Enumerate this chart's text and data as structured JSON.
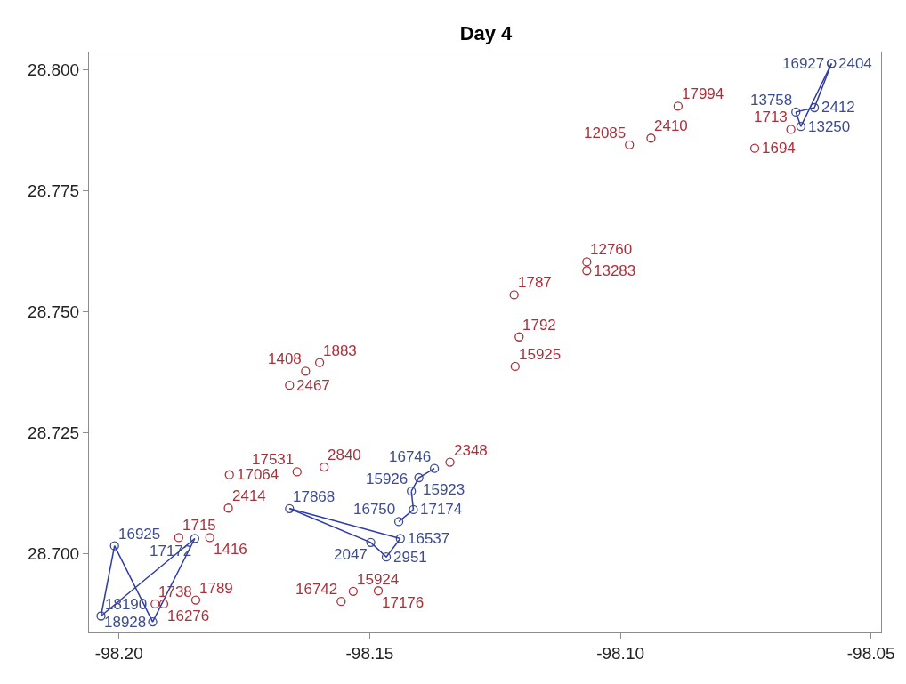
{
  "chart_data": {
    "type": "scatter",
    "title": "Day 4",
    "xlim": [
      -98.206,
      -98.048
    ],
    "ylim": [
      28.6837,
      28.8036
    ],
    "xticks": [
      {
        "value": -98.2,
        "label": "-98.20"
      },
      {
        "value": -98.15,
        "label": "-98.15"
      },
      {
        "value": -98.1,
        "label": "-98.10"
      },
      {
        "value": -98.05,
        "label": "-98.05"
      }
    ],
    "yticks": [
      {
        "value": 28.7,
        "label": "28.700"
      },
      {
        "value": 28.725,
        "label": "28.725"
      },
      {
        "value": 28.75,
        "label": "28.750"
      },
      {
        "value": 28.775,
        "label": "28.775"
      },
      {
        "value": 28.8,
        "label": "28.800"
      }
    ],
    "marker": "circle",
    "series": [
      {
        "color": "#a8323c",
        "x": [
          -98.0885,
          -98.0939,
          -98.0982,
          -98.066,
          -98.0732,
          -98.1067,
          -98.1067,
          -98.1212,
          -98.1202,
          -98.121,
          -98.16,
          -98.1628,
          -98.166,
          -98.178,
          -98.1645,
          -98.1591,
          -98.134,
          -98.1782,
          -98.1881,
          -98.1819,
          -98.1847,
          -98.1911,
          -98.1928,
          -98.1533,
          -98.1557,
          -98.1483
        ],
        "values": [
          28.7925,
          28.7859,
          28.7845,
          28.7877,
          28.7838,
          28.7603,
          28.7585,
          28.7535,
          28.7448,
          28.7387,
          28.7395,
          28.7377,
          28.7348,
          28.7163,
          28.7169,
          28.7179,
          28.7189,
          28.7094,
          28.7033,
          28.7033,
          28.6904,
          28.6896,
          28.6896,
          28.6922,
          28.6901,
          28.6923
        ]
      },
      {
        "color": "#3d4c8f",
        "x": [
          -98.0579,
          -98.0579,
          -98.0613,
          -98.065,
          -98.064,
          -98.1371,
          -98.1402,
          -98.1417,
          -98.1413,
          -98.1442,
          -98.1439,
          -98.1467,
          -98.1498,
          -98.166,
          -98.2009,
          -98.1849,
          -98.2036,
          -98.1933
        ],
        "values": [
          28.8013,
          28.8013,
          28.7922,
          28.7913,
          28.7883,
          28.7176,
          28.7157,
          28.7129,
          28.7091,
          28.7066,
          28.7031,
          28.6993,
          28.7023,
          28.7093,
          28.7016,
          28.7031,
          28.6871,
          28.6859
        ]
      },
      {
        "type": "line",
        "color": "#2e3ca8",
        "marker": "none",
        "line_style": "solid",
        "x": [
          -98.0579,
          -98.064,
          -98.065
        ],
        "values": [
          28.8013,
          28.7883,
          28.7913
        ]
      },
      {
        "type": "line",
        "color": "#2e3ca8",
        "marker": "none",
        "line_style": "solid",
        "x": [
          -98.065,
          -98.0613,
          -98.0579
        ],
        "values": [
          28.7913,
          28.7922,
          28.8013
        ]
      },
      {
        "type": "line",
        "color": "#2e3ca8",
        "marker": "none",
        "line_style": "solid",
        "x": [
          -98.1371,
          -98.1402,
          -98.1417
        ],
        "values": [
          28.7176,
          28.7157,
          28.7129
        ]
      },
      {
        "type": "line",
        "color": "#2e3ca8",
        "marker": "none",
        "line_style": "solid",
        "x": [
          -98.1417,
          -98.1413
        ],
        "values": [
          28.7129,
          28.7091
        ]
      },
      {
        "type": "line",
        "color": "#2e3ca8",
        "marker": "none",
        "line_style": "solid",
        "x": [
          -98.1413,
          -98.1442
        ],
        "values": [
          28.7091,
          28.7066
        ]
      },
      {
        "type": "line",
        "color": "#2e3ca8",
        "marker": "none",
        "line_style": "solid",
        "x": [
          -98.1439,
          -98.166
        ],
        "values": [
          28.7031,
          28.7093
        ]
      },
      {
        "type": "line",
        "color": "#2e3ca8",
        "marker": "none",
        "line_style": "solid",
        "x": [
          -98.166,
          -98.1498,
          -98.1467,
          -98.1439
        ],
        "values": [
          28.7093,
          28.7023,
          28.6993,
          28.7031
        ]
      },
      {
        "type": "line",
        "color": "#2e3ca8",
        "marker": "none",
        "line_style": "solid",
        "x": [
          -98.2009,
          -98.2036
        ],
        "values": [
          28.7016,
          28.6871
        ]
      },
      {
        "type": "line",
        "color": "#2e3ca8",
        "marker": "none",
        "line_style": "solid",
        "x": [
          -98.2036,
          -98.1849
        ],
        "values": [
          28.6871,
          28.7031
        ]
      },
      {
        "type": "line",
        "color": "#2e3ca8",
        "marker": "none",
        "line_style": "solid",
        "x": [
          -98.1849,
          -98.1933,
          -98.2009
        ],
        "values": [
          28.7031,
          28.6859,
          28.7016
        ]
      }
    ],
    "annotations": [
      {
        "text": "17994",
        "x": -98.0885,
        "y": 28.7925
      },
      {
        "text": "2410",
        "x": -98.0939,
        "y": 28.7859
      },
      {
        "text": "12085",
        "x": -98.0982,
        "y": 28.7845
      },
      {
        "text": "1713",
        "x": -98.066,
        "y": 28.7877
      },
      {
        "text": "1694",
        "x": -98.0732,
        "y": 28.7838
      },
      {
        "text": "12760",
        "x": -98.1067,
        "y": 28.7603
      },
      {
        "text": "13283",
        "x": -98.1067,
        "y": 28.7585
      },
      {
        "text": "1787",
        "x": -98.1212,
        "y": 28.7535
      },
      {
        "text": "1792",
        "x": -98.1202,
        "y": 28.7448
      },
      {
        "text": "15925",
        "x": -98.121,
        "y": 28.7387
      },
      {
        "text": "1883",
        "x": -98.16,
        "y": 28.7395
      },
      {
        "text": "1408",
        "x": -98.1628,
        "y": 28.7377
      },
      {
        "text": "2467",
        "x": -98.166,
        "y": 28.7348
      },
      {
        "text": "17064",
        "x": -98.178,
        "y": 28.7163
      },
      {
        "text": "17531",
        "x": -98.1645,
        "y": 28.7169
      },
      {
        "text": "2840",
        "x": -98.1591,
        "y": 28.7179
      },
      {
        "text": "2348",
        "x": -98.134,
        "y": 28.7189
      },
      {
        "text": "2414",
        "x": -98.1782,
        "y": 28.7094
      },
      {
        "text": "1715",
        "x": -98.1881,
        "y": 28.7033
      },
      {
        "text": "1416",
        "x": -98.1819,
        "y": 28.7033
      },
      {
        "text": "1789",
        "x": -98.1847,
        "y": 28.6904
      },
      {
        "text": "16276",
        "x": -98.1911,
        "y": 28.6896
      },
      {
        "text": "1738",
        "x": -98.1928,
        "y": 28.6896
      },
      {
        "text": "15924",
        "x": -98.1533,
        "y": 28.6922
      },
      {
        "text": "16742",
        "x": -98.1557,
        "y": 28.6901
      },
      {
        "text": "17176",
        "x": -98.1483,
        "y": 28.6923
      },
      {
        "text": "2404",
        "x": -98.0579,
        "y": 28.8013
      },
      {
        "text": "16927",
        "x": -98.0579,
        "y": 28.8013
      },
      {
        "text": "2412",
        "x": -98.0613,
        "y": 28.7922
      },
      {
        "text": "13758",
        "x": -98.065,
        "y": 28.7913
      },
      {
        "text": "13250",
        "x": -98.064,
        "y": 28.7883
      },
      {
        "text": "16746",
        "x": -98.1371,
        "y": 28.7176
      },
      {
        "text": "15923",
        "x": -98.1402,
        "y": 28.7157
      },
      {
        "text": "15926",
        "x": -98.1417,
        "y": 28.7129
      },
      {
        "text": "17174",
        "x": -98.1413,
        "y": 28.7091
      },
      {
        "text": "16750",
        "x": -98.1442,
        "y": 28.7066
      },
      {
        "text": "16537",
        "x": -98.1439,
        "y": 28.7031
      },
      {
        "text": "2951",
        "x": -98.1467,
        "y": 28.6993
      },
      {
        "text": "2047",
        "x": -98.1498,
        "y": 28.7023
      },
      {
        "text": "17868",
        "x": -98.166,
        "y": 28.7093
      },
      {
        "text": "16925",
        "x": -98.2009,
        "y": 28.7016
      },
      {
        "text": "17172",
        "x": -98.1849,
        "y": 28.7031
      },
      {
        "text": "18190",
        "x": -98.2036,
        "y": 28.6871
      },
      {
        "text": "18928",
        "x": -98.1933,
        "y": 28.6859
      }
    ]
  }
}
